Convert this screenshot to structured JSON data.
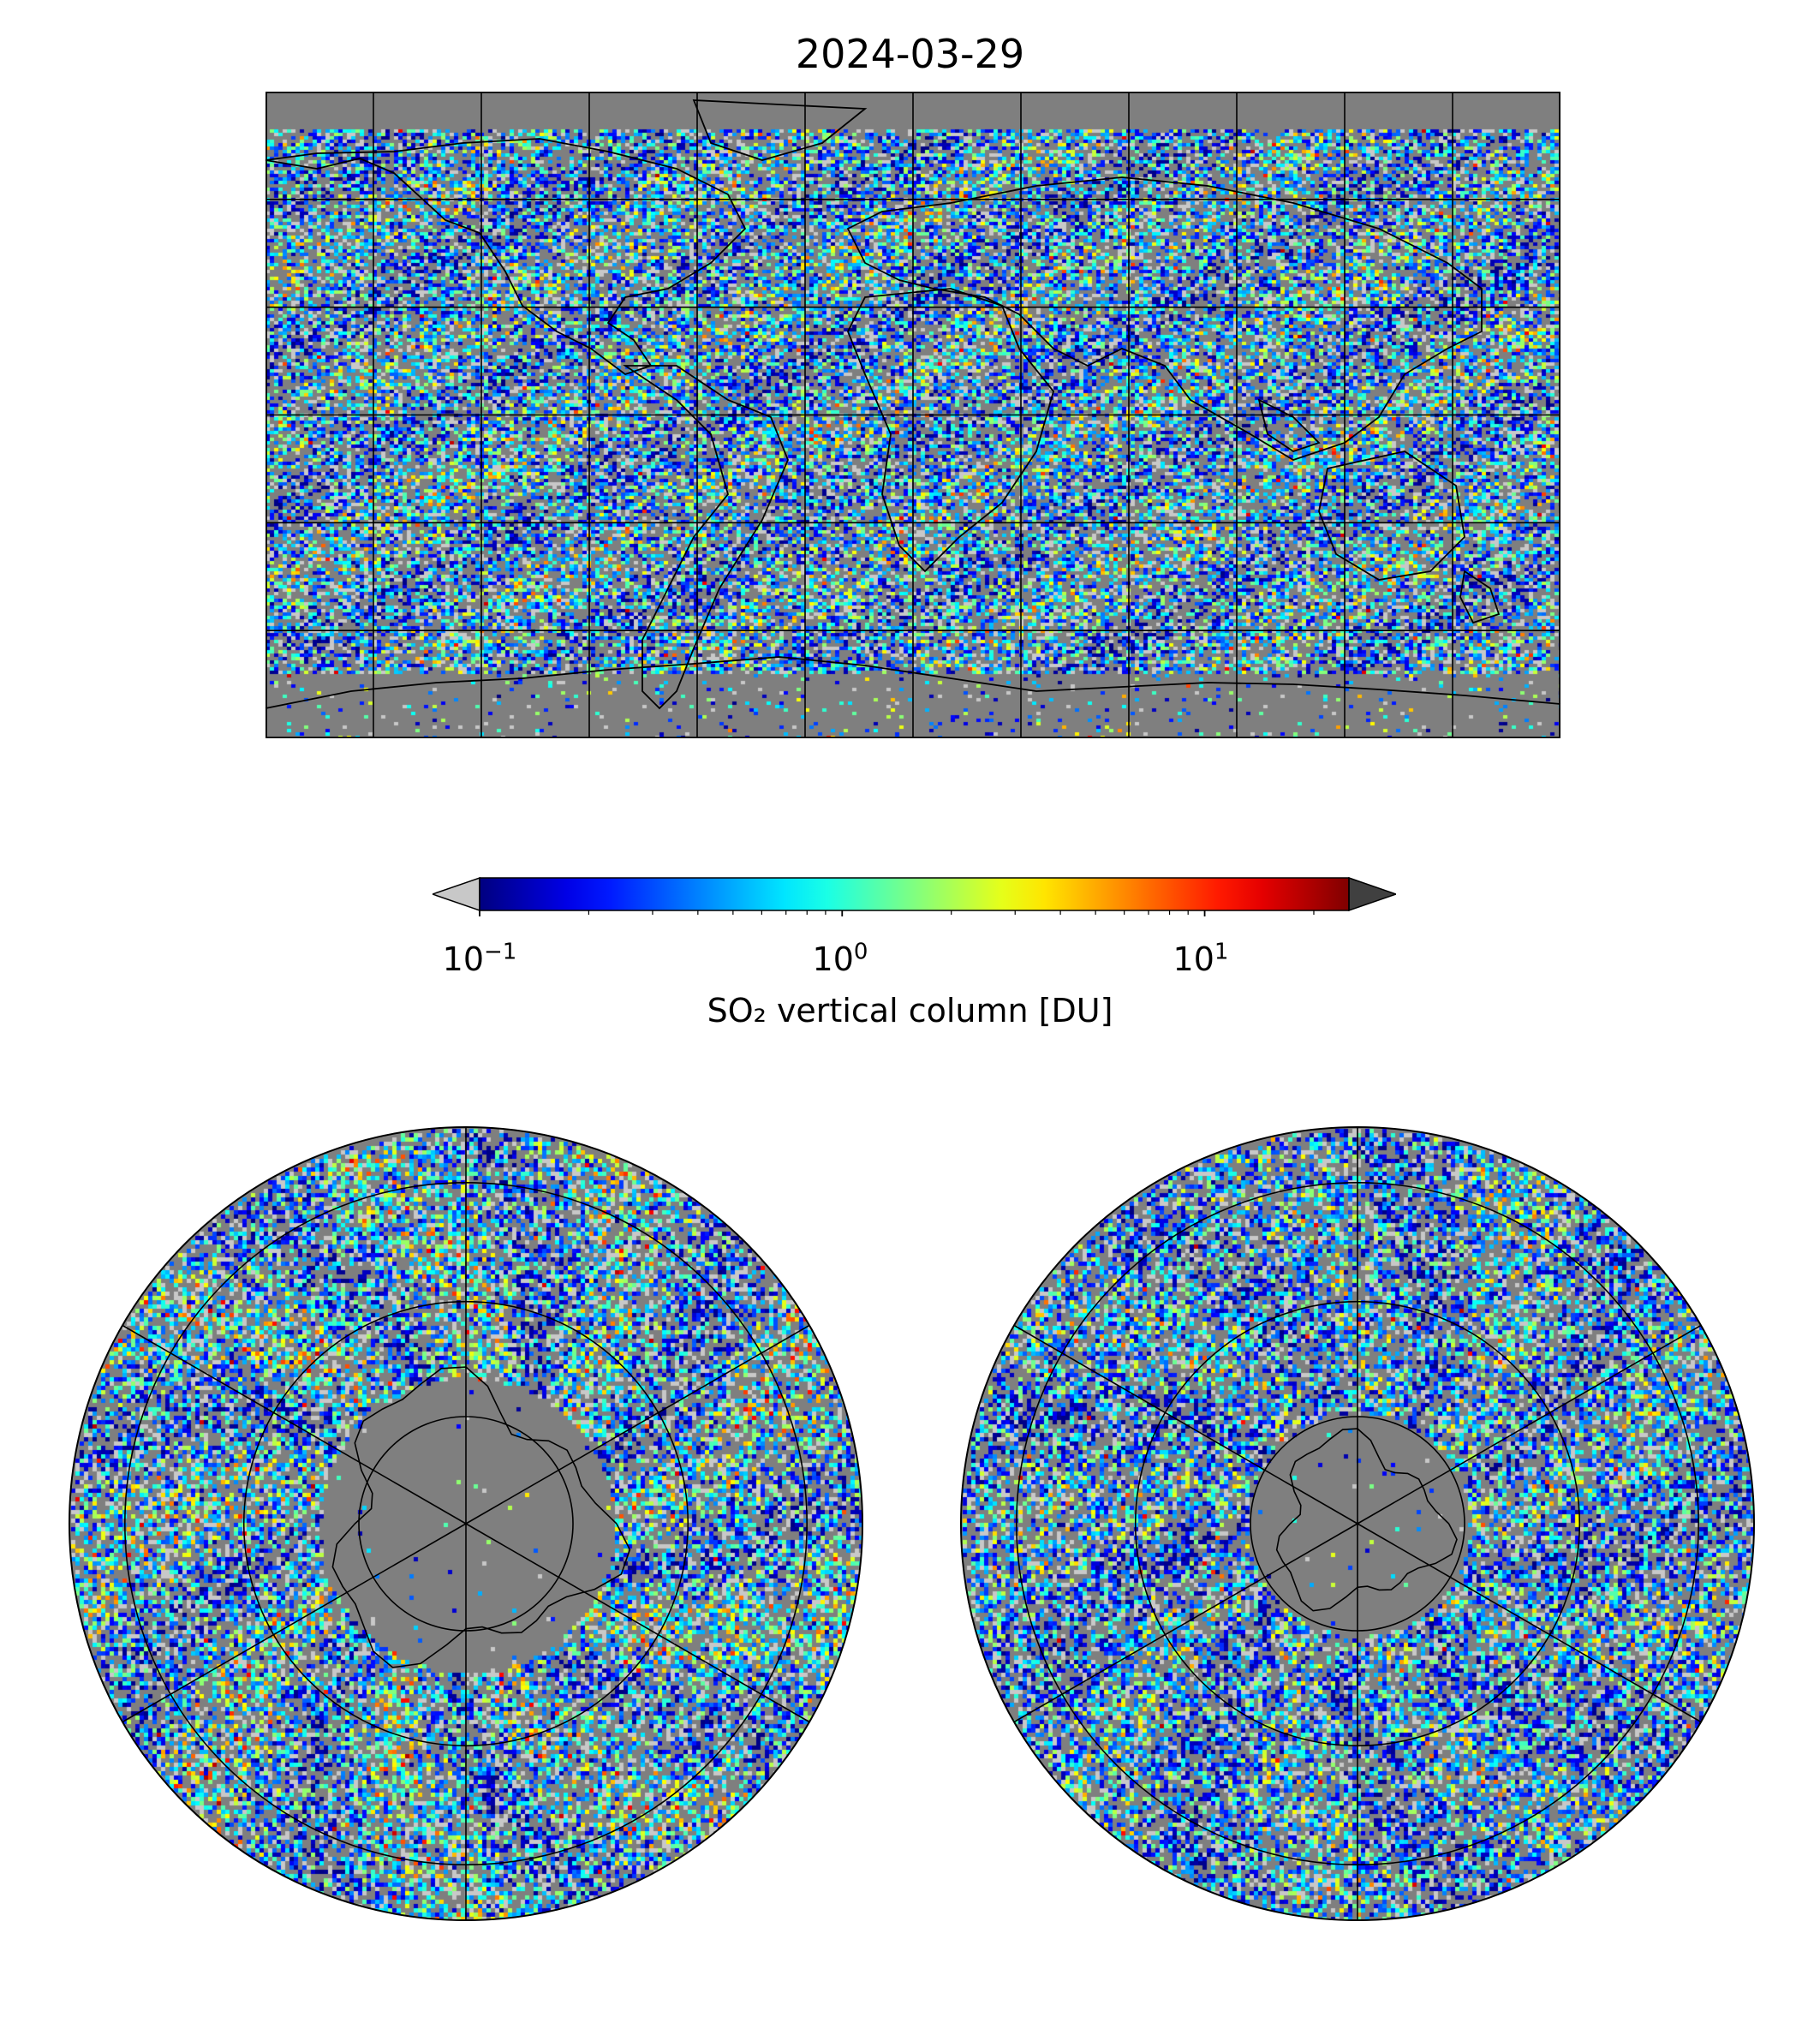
{
  "title": "2024-03-29",
  "colorbar": {
    "label": "SO₂ vertical column [DU]",
    "scale": "log",
    "range": [
      0.1,
      25
    ],
    "extend": "both",
    "under_color": "#c8c8c8",
    "over_color": "#404040",
    "colormap": "jet",
    "ticks": [
      {
        "value": 0.1,
        "base": "10",
        "exp": "−1"
      },
      {
        "value": 1,
        "base": "10",
        "exp": "0"
      },
      {
        "value": 10,
        "base": "10",
        "exp": "1"
      }
    ]
  },
  "maps": {
    "background_color": "#7f7f7f",
    "world": {
      "projection": "plate-carree",
      "gridline_lon_step_deg": 30,
      "gridline_lat_step_deg": 30
    },
    "north_polar": {
      "projection": "azimuthal",
      "hemisphere": "north"
    },
    "south_polar": {
      "projection": "azimuthal",
      "hemisphere": "south"
    }
  }
}
